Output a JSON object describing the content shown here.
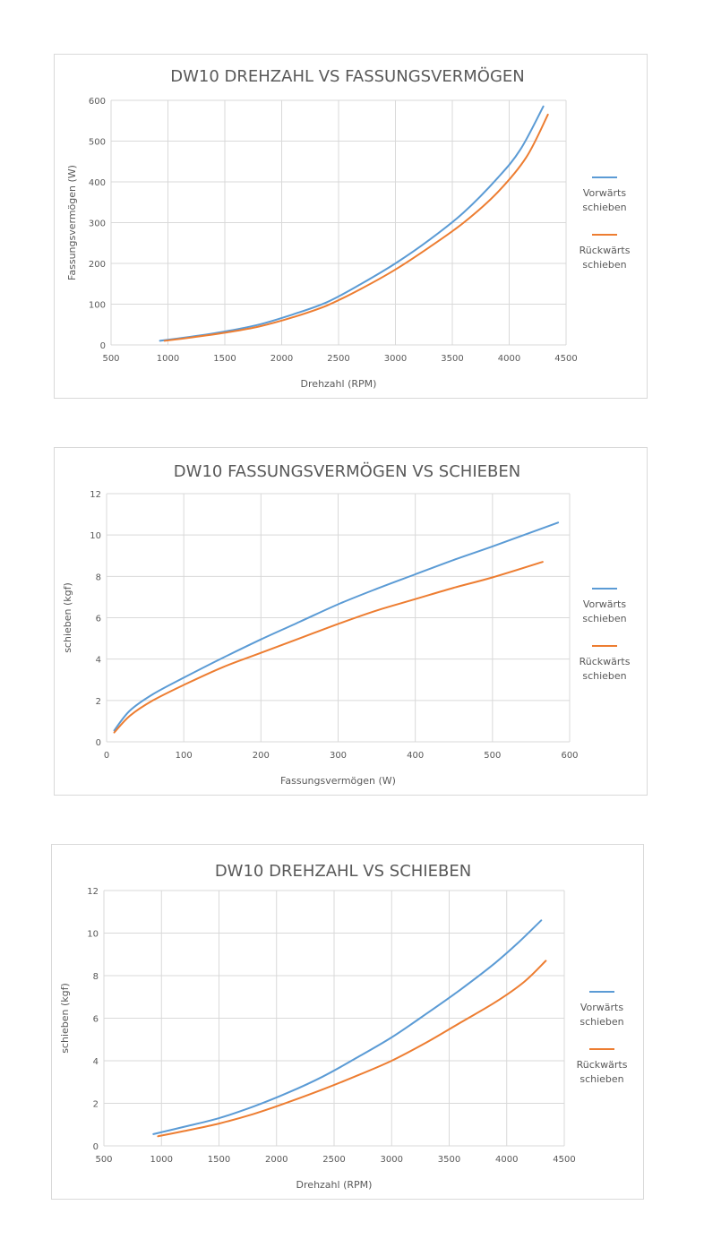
{
  "colors": {
    "forward": "#5b9bd5",
    "backward": "#ed7d31"
  },
  "chart_data": [
    {
      "type": "line",
      "title": "DW10 DREHZAHL VS FASSUNGSVERMÖGEN",
      "xlabel": "Drehzahl (RPM)",
      "ylabel": "Fassungsvermögen (W)",
      "xlim": [
        500,
        4500
      ],
      "ylim": [
        0,
        600
      ],
      "xticks": [
        "500",
        "1000",
        "1500",
        "2000",
        "2500",
        "3000",
        "3500",
        "4000",
        "4500"
      ],
      "yticks": [
        "0",
        "100",
        "200",
        "300",
        "400",
        "500",
        "600"
      ],
      "grid": true,
      "legend_position": "right",
      "series": [
        {
          "name": "Vorwärts schieben",
          "x": [
            930,
            1200,
            1500,
            1800,
            2100,
            2400,
            2700,
            3000,
            3300,
            3600,
            3900,
            4100,
            4300
          ],
          "y": [
            10,
            20,
            33,
            50,
            75,
            105,
            150,
            200,
            258,
            325,
            410,
            480,
            585
          ]
        },
        {
          "name": "Rückwärts schieben",
          "x": [
            970,
            1200,
            1500,
            1800,
            2100,
            2400,
            2700,
            3000,
            3300,
            3600,
            3900,
            4150,
            4340
          ],
          "y": [
            10,
            18,
            30,
            45,
            68,
            97,
            138,
            185,
            240,
            300,
            375,
            460,
            565
          ]
        }
      ]
    },
    {
      "type": "line",
      "title": "DW10 FASSUNGSVERMÖGEN VS SCHIEBEN",
      "xlabel": "Fassungsvermögen (W)",
      "ylabel": "schieben (kgf)",
      "xlim": [
        0,
        600
      ],
      "ylim": [
        0,
        12
      ],
      "xticks": [
        "0",
        "100",
        "200",
        "300",
        "400",
        "500",
        "600"
      ],
      "yticks": [
        "0",
        "2",
        "4",
        "6",
        "8",
        "10",
        "12"
      ],
      "grid": true,
      "legend_position": "right",
      "series": [
        {
          "name": "Vorwärts schieben",
          "x": [
            10,
            30,
            60,
            100,
            150,
            200,
            250,
            300,
            350,
            400,
            450,
            500,
            585
          ],
          "y": [
            0.55,
            1.5,
            2.3,
            3.1,
            4.05,
            4.95,
            5.8,
            6.65,
            7.4,
            8.1,
            8.8,
            9.45,
            10.6
          ]
        },
        {
          "name": "Rückwärts schieben",
          "x": [
            10,
            30,
            60,
            100,
            150,
            200,
            250,
            300,
            350,
            400,
            450,
            500,
            565
          ],
          "y": [
            0.45,
            1.25,
            2.0,
            2.75,
            3.6,
            4.3,
            5.0,
            5.7,
            6.35,
            6.9,
            7.45,
            7.95,
            8.7
          ]
        }
      ]
    },
    {
      "type": "line",
      "title": "DW10 DREHZAHL VS SCHIEBEN",
      "xlabel": "Drehzahl (RPM)",
      "ylabel": "schieben (kgf)",
      "xlim": [
        500,
        4500
      ],
      "ylim": [
        0,
        12
      ],
      "xticks": [
        "500",
        "1000",
        "1500",
        "2000",
        "2500",
        "3000",
        "3500",
        "4000",
        "4500"
      ],
      "yticks": [
        "0",
        "2",
        "4",
        "6",
        "8",
        "10",
        "12"
      ],
      "grid": true,
      "legend_position": "right",
      "series": [
        {
          "name": "Vorwärts schieben",
          "x": [
            930,
            1200,
            1500,
            1800,
            2100,
            2400,
            2700,
            3000,
            3300,
            3600,
            3900,
            4100,
            4300
          ],
          "y": [
            0.55,
            0.9,
            1.3,
            1.85,
            2.5,
            3.25,
            4.15,
            5.1,
            6.2,
            7.35,
            8.6,
            9.55,
            10.6
          ]
        },
        {
          "name": "Rückwärts schieben",
          "x": [
            970,
            1200,
            1500,
            1800,
            2100,
            2400,
            2700,
            3000,
            3300,
            3600,
            3900,
            4150,
            4340
          ],
          "y": [
            0.45,
            0.7,
            1.05,
            1.5,
            2.05,
            2.65,
            3.3,
            4.0,
            4.85,
            5.8,
            6.75,
            7.7,
            8.7
          ]
        }
      ]
    }
  ]
}
